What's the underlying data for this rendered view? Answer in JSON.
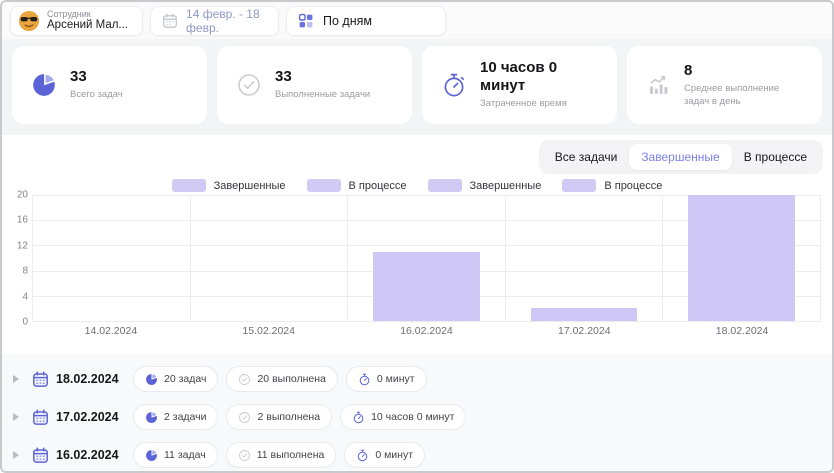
{
  "topbar": {
    "employee_label": "Сотрудник",
    "employee_name": "Арсений Мал...",
    "date_range": "14 февр. - 18 февр.",
    "group_by": "По дням"
  },
  "stats": [
    {
      "icon": "pie-chart-icon",
      "value": "33",
      "label": "Всего задач"
    },
    {
      "icon": "check-circle-icon",
      "value": "33",
      "label": "Выполненные задачи"
    },
    {
      "icon": "stopwatch-icon",
      "value": "10 часов 0 минут",
      "label": "Затраченное время"
    },
    {
      "icon": "bar-chart-icon",
      "value": "8",
      "label": "Среднее выполнение задач в день"
    }
  ],
  "tabs": [
    {
      "label": "Все задачи",
      "active": false
    },
    {
      "label": "Завершенные",
      "active": true
    },
    {
      "label": "В процессе",
      "active": false
    }
  ],
  "chart_data": {
    "type": "bar",
    "title": "",
    "categories": [
      "14.02.2024",
      "15.02.2024",
      "16.02.2024",
      "17.02.2024",
      "18.02.2024"
    ],
    "series": [
      {
        "name": "Завершенные",
        "values": [
          0,
          0,
          11,
          2,
          20
        ]
      }
    ],
    "legend": [
      "Завершенные",
      "В процессе",
      "Завершенные",
      "В процессе"
    ],
    "legend_position": "top",
    "xlabel": "",
    "ylabel": "",
    "ylim": [
      0,
      20
    ],
    "yticks": [
      0,
      4,
      8,
      12,
      16,
      20
    ],
    "grid": true,
    "bar_color": "#cfc8f6"
  },
  "day_rows": [
    {
      "date": "18.02.2024",
      "tasks": "20 задач",
      "completed": "20 выполнена",
      "time": "0 минут"
    },
    {
      "date": "17.02.2024",
      "tasks": "2 задачи",
      "completed": "2 выполнена",
      "time": "10 часов 0 минут"
    },
    {
      "date": "16.02.2024",
      "tasks": "11 задач",
      "completed": "11 выполнена",
      "time": "0 минут"
    }
  ],
  "colors": {
    "accent": "#5b63d6",
    "accent_text": "#7b82e6",
    "bar": "#cfc8f6",
    "muted_icon": "#c6c8d0",
    "date_range_text": "#9098c8"
  }
}
